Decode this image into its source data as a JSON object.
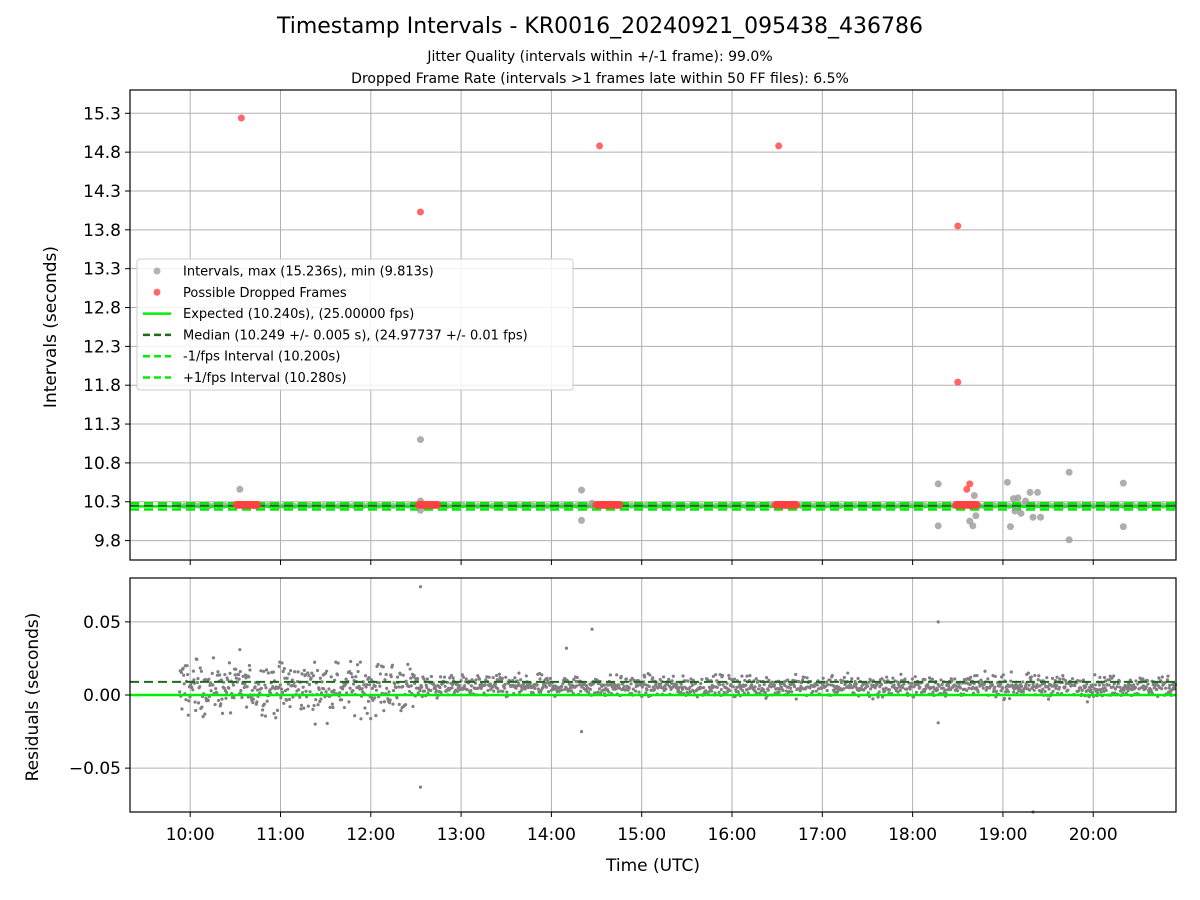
{
  "title": "Timestamp Intervals - KR0016_20240921_095438_436786",
  "subtitle_1": "Jitter Quality (intervals within +/-1 frame): 99.0%",
  "subtitle_2": "Dropped Frame Rate (intervals >1 frames late within 50 FF files): 6.5%",
  "colors": {
    "intervals": "#a0a0a0",
    "dropped": "#ff4040",
    "expected": "#00ee00",
    "median": "#1a6b1a",
    "residuals": "#808080",
    "grid": "#b0b0b0"
  },
  "chart_data": [
    {
      "type": "scatter",
      "ylabel": "Intervals (seconds)",
      "ylim": [
        9.55,
        15.6
      ],
      "yticks": [
        "9.8",
        "10.3",
        "10.8",
        "11.3",
        "11.8",
        "12.3",
        "12.8",
        "13.3",
        "13.8",
        "14.3",
        "14.8",
        "15.3"
      ],
      "xlim": [
        "09:20",
        "20:55"
      ],
      "grid": true,
      "legend_position": "center-left",
      "legend": [
        "Intervals, max (15.236s), min (9.813s)",
        "Possible Dropped Frames",
        "Expected (10.240s), (25.00000 fps)",
        "Median (10.249 +/- 0.005 s), (24.97737 +/- 0.01 fps)",
        "-1/fps Interval (10.200s)",
        "+1/fps Interval (10.280s)"
      ],
      "reference_lines": {
        "expected": 10.24,
        "median": 10.249,
        "minus_1_fps": 10.2,
        "plus_1_fps": 10.28
      },
      "interval_outliers": [
        {
          "x": "10:33",
          "y": 10.46
        },
        {
          "x": "12:33",
          "y": 11.1
        },
        {
          "x": "12:33",
          "y": 10.31
        },
        {
          "x": "12:33",
          "y": 10.19
        },
        {
          "x": "14:20",
          "y": 10.45
        },
        {
          "x": "14:20",
          "y": 10.06
        },
        {
          "x": "14:27",
          "y": 10.28
        },
        {
          "x": "18:17",
          "y": 10.53
        },
        {
          "x": "18:17",
          "y": 9.99
        },
        {
          "x": "18:38",
          "y": 10.05
        },
        {
          "x": "18:40",
          "y": 9.99
        },
        {
          "x": "18:41",
          "y": 10.38
        },
        {
          "x": "18:42",
          "y": 10.12
        },
        {
          "x": "19:03",
          "y": 10.55
        },
        {
          "x": "19:05",
          "y": 9.98
        },
        {
          "x": "19:07",
          "y": 10.34
        },
        {
          "x": "19:08",
          "y": 10.18
        },
        {
          "x": "19:10",
          "y": 10.35
        },
        {
          "x": "19:12",
          "y": 10.15
        },
        {
          "x": "19:15",
          "y": 10.31
        },
        {
          "x": "19:18",
          "y": 10.42
        },
        {
          "x": "19:20",
          "y": 10.1
        },
        {
          "x": "19:23",
          "y": 10.42
        },
        {
          "x": "19:25",
          "y": 10.1
        },
        {
          "x": "19:44",
          "y": 10.68
        },
        {
          "x": "19:44",
          "y": 9.81
        },
        {
          "x": "20:20",
          "y": 10.54
        },
        {
          "x": "20:20",
          "y": 9.98
        }
      ],
      "interval_baseline": {
        "from": "09:53",
        "to": "20:55",
        "y": 10.249
      },
      "dropped_frames": [
        {
          "x": "10:34",
          "y": 15.24
        },
        {
          "x": "12:33",
          "y": 14.03
        },
        {
          "x": "14:32",
          "y": 14.88
        },
        {
          "x": "16:31",
          "y": 14.88
        },
        {
          "x": "18:30",
          "y": 13.85
        },
        {
          "x": "18:30",
          "y": 11.84
        },
        {
          "x": "18:36",
          "y": 10.46
        },
        {
          "x": "18:38",
          "y": 10.53
        }
      ],
      "dropped_clusters": [
        {
          "from": "10:31",
          "to": "10:45",
          "y": 10.26
        },
        {
          "from": "12:32",
          "to": "12:44",
          "y": 10.26
        },
        {
          "from": "14:30",
          "to": "14:45",
          "y": 10.26
        },
        {
          "from": "16:29",
          "to": "16:43",
          "y": 10.26
        },
        {
          "from": "18:29",
          "to": "18:43",
          "y": 10.26
        }
      ]
    },
    {
      "type": "scatter",
      "ylabel": "Residuals (seconds)",
      "xlabel": "Time (UTC)",
      "ylim": [
        -0.08,
        0.08
      ],
      "yticks": [
        "0.05",
        "0.00",
        "−0.05"
      ],
      "ytick_values": [
        0.05,
        0.0,
        -0.05
      ],
      "xticks": [
        "10:00",
        "11:00",
        "12:00",
        "13:00",
        "14:00",
        "15:00",
        "16:00",
        "17:00",
        "18:00",
        "19:00",
        "20:00"
      ],
      "xlim": [
        "09:20",
        "20:55"
      ],
      "grid": true,
      "reference_lines": {
        "expected": 0.0,
        "median": 0.009
      },
      "residuals_summary": [
        {
          "from": "09:53",
          "to": "12:30",
          "center": 0.005,
          "spread": 0.012
        },
        {
          "from": "12:30",
          "to": "20:55",
          "center": 0.006,
          "spread": 0.005
        }
      ],
      "residual_outliers": [
        {
          "x": "12:33",
          "y": 0.074
        },
        {
          "x": "12:33",
          "y": -0.063
        },
        {
          "x": "14:27",
          "y": 0.045
        },
        {
          "x": "14:20",
          "y": -0.025
        },
        {
          "x": "18:17",
          "y": 0.05
        },
        {
          "x": "18:17",
          "y": -0.019
        },
        {
          "x": "19:20",
          "y": -0.08
        },
        {
          "x": "14:10",
          "y": 0.032
        },
        {
          "x": "10:33",
          "y": 0.031
        }
      ]
    }
  ]
}
